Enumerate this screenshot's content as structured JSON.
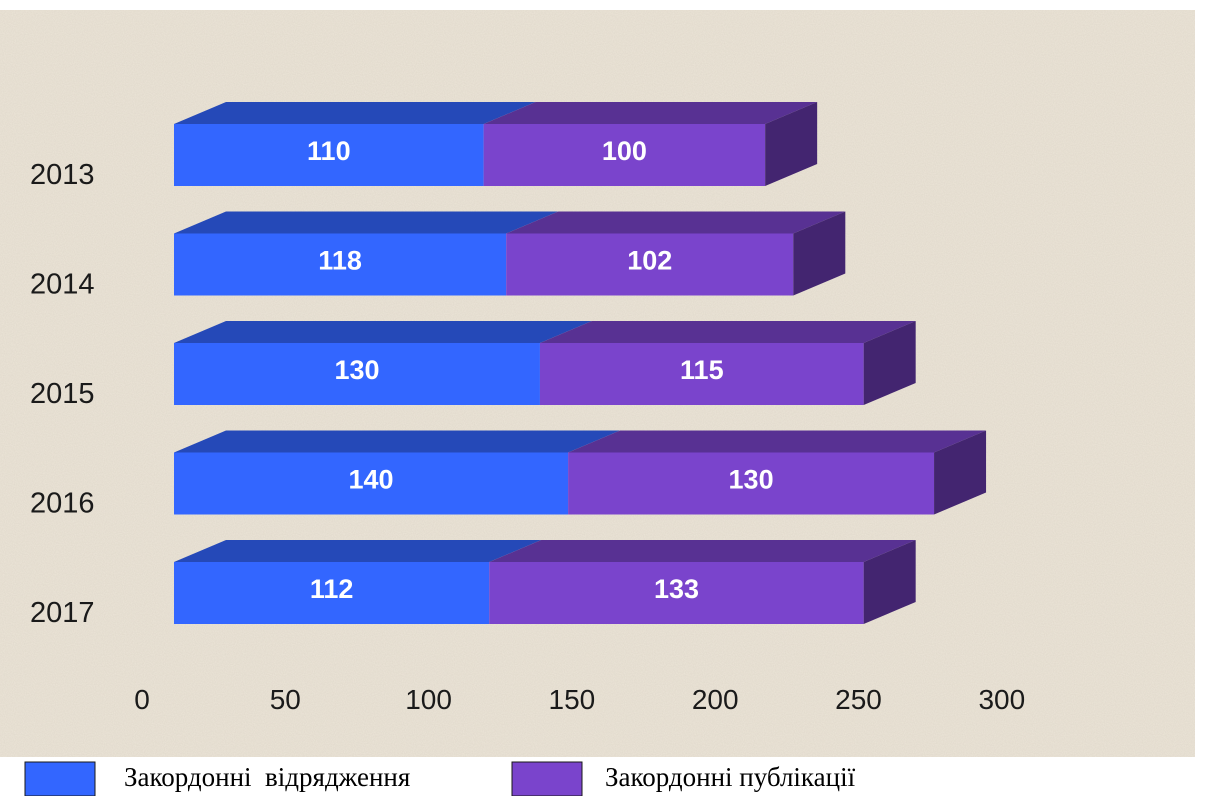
{
  "chart_data": {
    "type": "bar",
    "orientation": "horizontal",
    "stacked": true,
    "style": "3d",
    "categories": [
      "2013",
      "2014",
      "2015",
      "2016",
      "2017"
    ],
    "series": [
      {
        "name": "Закордонні  відрядження",
        "values": [
          110,
          118,
          130,
          140,
          112
        ],
        "color": "#3366ff"
      },
      {
        "name": "Закордонні публікації",
        "values": [
          100,
          102,
          115,
          130,
          133
        ],
        "color": "#7a44cc"
      }
    ],
    "data_labels": {
      "series_0": [
        "110",
        "118",
        "130",
        "140",
        "112"
      ],
      "series_1": [
        "100",
        "102",
        "115",
        "130",
        "133"
      ]
    },
    "x_ticks": [
      "0",
      "50",
      "100",
      "150",
      "200",
      "250",
      "300"
    ],
    "xlim": [
      0,
      300
    ],
    "grid": false,
    "legend_position": "bottom",
    "background_color": "#ece5d8"
  }
}
